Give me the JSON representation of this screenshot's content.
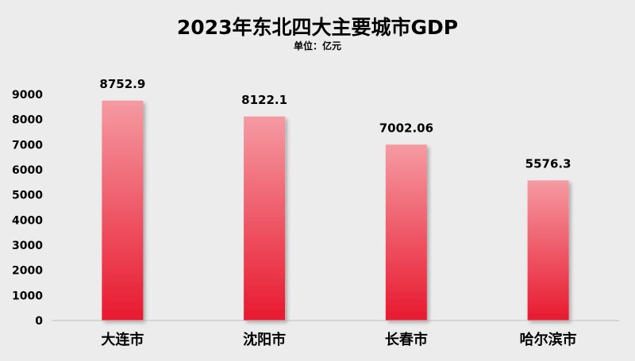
{
  "chart_data": {
    "type": "bar",
    "title": "2023年东北四大主要城市GDP",
    "subtitle": "单位：亿元",
    "categories": [
      "大连市",
      "沈阳市",
      "长春市",
      "哈尔滨市"
    ],
    "values": [
      8752.9,
      8122.1,
      7002.06,
      5576.3
    ],
    "value_labels": [
      "8752.9",
      "8122.1",
      "7002.06",
      "5576.3"
    ],
    "ylim": [
      0,
      9000
    ],
    "yticks": [
      0,
      1000,
      2000,
      3000,
      4000,
      5000,
      6000,
      7000,
      8000,
      9000
    ],
    "xlabel": "",
    "ylabel": "",
    "grid": false,
    "legend": "none",
    "colors": {
      "background": "#ececec",
      "bar_top": "#f59aa2",
      "bar_bottom": "#e8192f",
      "axis": "#bfbfbf"
    }
  }
}
